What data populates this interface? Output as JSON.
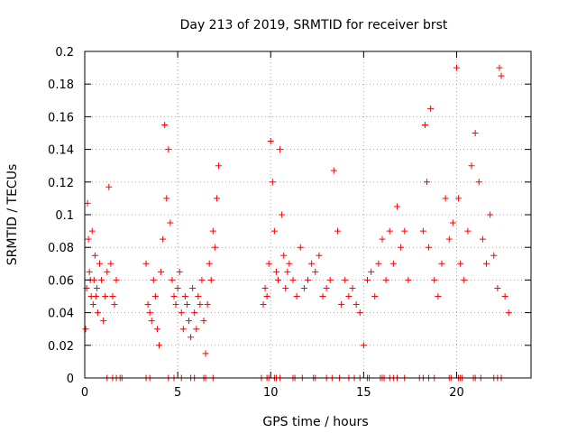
{
  "chart_data": {
    "type": "scatter",
    "title": "Day 213 of 2019, SRMTID for receiver brst",
    "xlabel": "GPS time / hours",
    "ylabel": "SRMTID / TECUs",
    "xlim": [
      0,
      24
    ],
    "ylim": [
      0,
      0.2
    ],
    "x_ticks": [
      0,
      5,
      10,
      15,
      20
    ],
    "x_tick_labels": [
      "0",
      "5",
      "10",
      "15",
      "20"
    ],
    "y_ticks": [
      0,
      0.02,
      0.04,
      0.06,
      0.08,
      0.1,
      0.12,
      0.14,
      0.16,
      0.18,
      0.2
    ],
    "y_tick_labels": [
      "0",
      "0.02",
      "0.04",
      "0.06",
      "0.08",
      "0.1",
      "0.12",
      "0.14",
      "0.16",
      "0.18",
      "0.2"
    ],
    "grid": true,
    "marker": "+",
    "color": "#ff0000",
    "series": [
      {
        "name": "SRMTID",
        "x": [
          0.05,
          0.1,
          0.15,
          0.2,
          0.25,
          0.3,
          0.35,
          0.4,
          0.45,
          0.5,
          0.55,
          0.6,
          0.65,
          0.7,
          0.8,
          0.9,
          1.0,
          1.1,
          1.2,
          1.3,
          1.4,
          1.5,
          1.6,
          1.7,
          3.3,
          3.4,
          3.5,
          3.6,
          3.7,
          3.8,
          3.9,
          4.0,
          4.1,
          4.2,
          4.3,
          4.4,
          4.5,
          4.6,
          4.7,
          4.8,
          4.9,
          5.0,
          5.1,
          5.2,
          5.3,
          5.4,
          5.5,
          5.6,
          5.7,
          5.8,
          5.9,
          6.0,
          6.1,
          6.2,
          6.3,
          6.4,
          6.5,
          6.6,
          6.7,
          6.8,
          6.9,
          7.0,
          7.1,
          7.2,
          9.6,
          9.7,
          9.8,
          9.9,
          10.0,
          10.1,
          10.2,
          10.3,
          10.4,
          10.5,
          10.6,
          10.7,
          10.8,
          10.9,
          11.0,
          11.2,
          11.4,
          11.6,
          11.8,
          12.0,
          12.2,
          12.4,
          12.6,
          12.8,
          13.0,
          13.2,
          13.4,
          13.6,
          13.8,
          14.0,
          14.2,
          14.4,
          14.6,
          14.8,
          15.0,
          15.2,
          15.4,
          15.6,
          15.8,
          16.0,
          16.2,
          16.4,
          16.6,
          16.8,
          17.0,
          17.2,
          17.4,
          18.2,
          18.3,
          18.4,
          18.5,
          18.6,
          18.8,
          19.0,
          19.2,
          19.4,
          19.6,
          19.8,
          20.0,
          20.1,
          20.2,
          20.4,
          20.6,
          20.8,
          21.0,
          21.2,
          21.4,
          21.6,
          21.8,
          22.0,
          22.2,
          22.3,
          22.4,
          22.6,
          22.8
        ],
        "y": [
          0.03,
          0.055,
          0.107,
          0.085,
          0.065,
          0.06,
          0.05,
          0.09,
          0.045,
          0.06,
          0.075,
          0.05,
          0.055,
          0.04,
          0.07,
          0.06,
          0.035,
          0.05,
          0.065,
          0.117,
          0.07,
          0.05,
          0.045,
          0.06,
          0.07,
          0.045,
          0.04,
          0.035,
          0.06,
          0.05,
          0.03,
          0.02,
          0.065,
          0.085,
          0.155,
          0.11,
          0.14,
          0.095,
          0.06,
          0.05,
          0.045,
          0.055,
          0.065,
          0.04,
          0.03,
          0.05,
          0.045,
          0.035,
          0.025,
          0.055,
          0.04,
          0.03,
          0.05,
          0.045,
          0.06,
          0.035,
          0.015,
          0.045,
          0.07,
          0.06,
          0.09,
          0.08,
          0.11,
          0.13,
          0.045,
          0.055,
          0.05,
          0.07,
          0.145,
          0.12,
          0.09,
          0.065,
          0.06,
          0.14,
          0.1,
          0.075,
          0.055,
          0.065,
          0.07,
          0.06,
          0.05,
          0.08,
          0.055,
          0.06,
          0.07,
          0.065,
          0.075,
          0.05,
          0.055,
          0.06,
          0.127,
          0.09,
          0.045,
          0.06,
          0.05,
          0.055,
          0.045,
          0.04,
          0.02,
          0.06,
          0.065,
          0.05,
          0.07,
          0.085,
          0.06,
          0.09,
          0.07,
          0.105,
          0.08,
          0.09,
          0.06,
          0.09,
          0.155,
          0.12,
          0.08,
          0.165,
          0.06,
          0.05,
          0.07,
          0.11,
          0.085,
          0.095,
          0.19,
          0.11,
          0.07,
          0.06,
          0.09,
          0.13,
          0.15,
          0.12,
          0.085,
          0.07,
          0.1,
          0.075,
          0.055,
          0.19,
          0.185,
          0.05,
          0.04
        ],
        "zero_markers_x": [
          1.2,
          1.5,
          1.7,
          1.9,
          2.0,
          3.3,
          3.5,
          4.5,
          4.8,
          5.2,
          5.7,
          5.9,
          6.4,
          6.5,
          6.9,
          9.5,
          9.8,
          9.9,
          10.2,
          10.3,
          10.5,
          11.2,
          11.3,
          11.7,
          12.3,
          12.4,
          13.0,
          13.3,
          13.7,
          14.2,
          14.5,
          14.8,
          15.2,
          15.3,
          15.9,
          16.0,
          16.1,
          16.4,
          16.6,
          16.8,
          17.2,
          18.0,
          18.2,
          18.5,
          18.8,
          19.6,
          19.7,
          20.1,
          20.2,
          20.3,
          20.9,
          21.0,
          21.3,
          22.0,
          22.2,
          22.4
        ]
      }
    ]
  }
}
